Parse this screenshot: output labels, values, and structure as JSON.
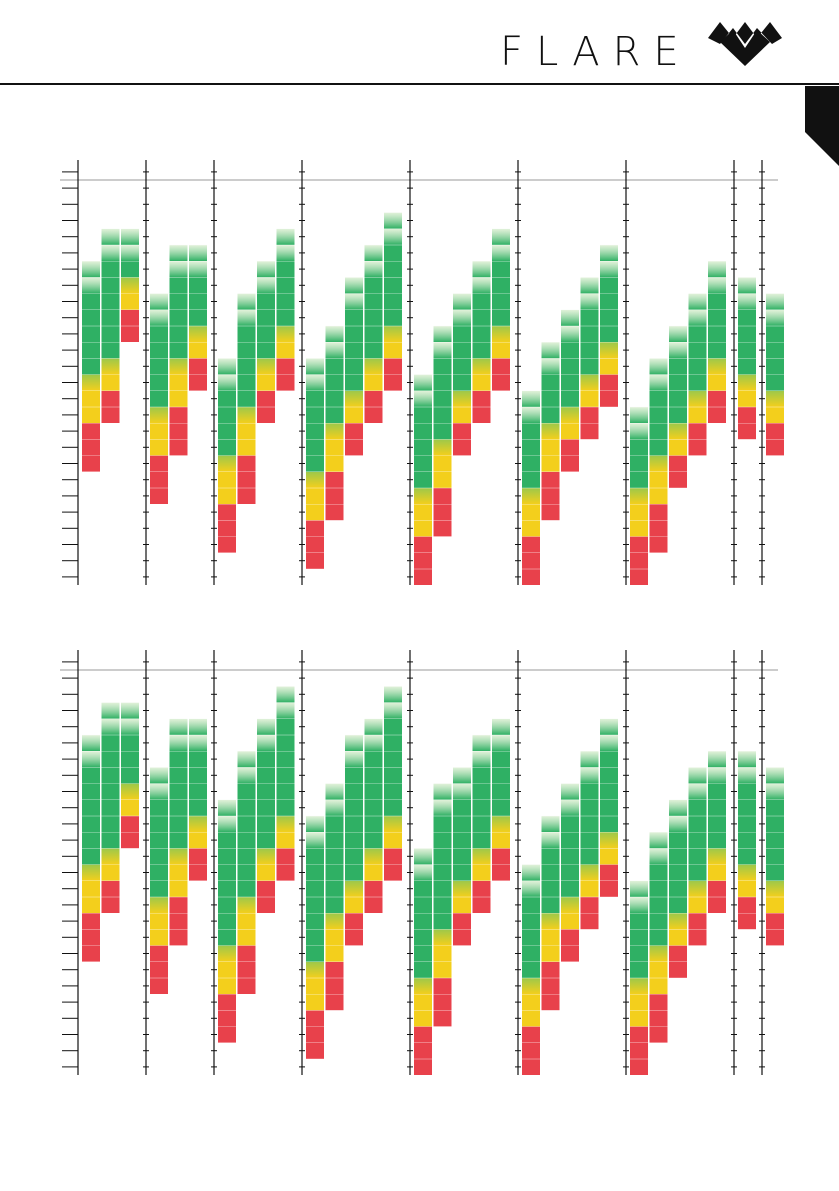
{
  "header": {
    "brand": "FLARE",
    "logo_icon": "double-chevron-logo",
    "tab_icon": "page-corner-tab"
  },
  "colors": {
    "red": "#e8414b",
    "yellow": "#f3cf1c",
    "green": "#2fb064",
    "axis": "#111111",
    "reference_line": "#999999"
  },
  "chart_data": [
    {
      "type": "bar",
      "stacked_ranges": true,
      "y_ticks": 25,
      "groups": [
        {
          "columns": [
            {
              "bottom": 7,
              "top": 20,
              "red": 3,
              "yellow": 3,
              "fade": 2
            },
            {
              "bottom": 10,
              "top": 22,
              "red": 2,
              "yellow": 2,
              "fade": 2
            },
            {
              "bottom": 15,
              "top": 22,
              "red": 2,
              "yellow": 2,
              "fade": 2
            }
          ]
        },
        {
          "columns": [
            {
              "bottom": 5,
              "top": 18,
              "red": 3,
              "yellow": 3,
              "fade": 2
            },
            {
              "bottom": 8,
              "top": 21,
              "red": 3,
              "yellow": 3,
              "fade": 2
            },
            {
              "bottom": 12,
              "top": 21,
              "red": 2,
              "yellow": 2,
              "fade": 2
            }
          ]
        },
        {
          "columns": [
            {
              "bottom": 2,
              "top": 14,
              "red": 3,
              "yellow": 3,
              "fade": 2
            },
            {
              "bottom": 5,
              "top": 18,
              "red": 3,
              "yellow": 3,
              "fade": 2
            },
            {
              "bottom": 10,
              "top": 20,
              "red": 2,
              "yellow": 2,
              "fade": 2
            },
            {
              "bottom": 12,
              "top": 22,
              "red": 2,
              "yellow": 2,
              "fade": 2
            }
          ]
        },
        {
          "columns": [
            {
              "bottom": 1,
              "top": 14,
              "red": 3,
              "yellow": 3,
              "fade": 2
            },
            {
              "bottom": 4,
              "top": 16,
              "red": 3,
              "yellow": 3,
              "fade": 2
            },
            {
              "bottom": 8,
              "top": 19,
              "red": 2,
              "yellow": 2,
              "fade": 2
            },
            {
              "bottom": 10,
              "top": 21,
              "red": 2,
              "yellow": 2,
              "fade": 2
            },
            {
              "bottom": 12,
              "top": 23,
              "red": 2,
              "yellow": 2,
              "fade": 2
            }
          ]
        },
        {
          "columns": [
            {
              "bottom": 0,
              "top": 13,
              "red": 3,
              "yellow": 3,
              "fade": 2
            },
            {
              "bottom": 3,
              "top": 16,
              "red": 3,
              "yellow": 3,
              "fade": 2
            },
            {
              "bottom": 8,
              "top": 18,
              "red": 2,
              "yellow": 2,
              "fade": 2
            },
            {
              "bottom": 10,
              "top": 20,
              "red": 2,
              "yellow": 2,
              "fade": 2
            },
            {
              "bottom": 12,
              "top": 22,
              "red": 2,
              "yellow": 2,
              "fade": 2
            }
          ]
        },
        {
          "columns": [
            {
              "bottom": 0,
              "top": 12,
              "red": 3,
              "yellow": 3,
              "fade": 2
            },
            {
              "bottom": 4,
              "top": 15,
              "red": 3,
              "yellow": 3,
              "fade": 2
            },
            {
              "bottom": 7,
              "top": 17,
              "red": 2,
              "yellow": 2,
              "fade": 2
            },
            {
              "bottom": 9,
              "top": 19,
              "red": 2,
              "yellow": 2,
              "fade": 2
            },
            {
              "bottom": 11,
              "top": 21,
              "red": 2,
              "yellow": 2,
              "fade": 2
            }
          ]
        },
        {
          "columns": [
            {
              "bottom": 0,
              "top": 11,
              "red": 3,
              "yellow": 3,
              "fade": 2
            },
            {
              "bottom": 2,
              "top": 14,
              "red": 3,
              "yellow": 3,
              "fade": 2
            },
            {
              "bottom": 6,
              "top": 16,
              "red": 2,
              "yellow": 2,
              "fade": 2
            },
            {
              "bottom": 8,
              "top": 18,
              "red": 2,
              "yellow": 2,
              "fade": 2
            },
            {
              "bottom": 10,
              "top": 20,
              "red": 2,
              "yellow": 2,
              "fade": 2
            }
          ]
        },
        {
          "columns": [
            {
              "bottom": 9,
              "top": 19,
              "red": 2,
              "yellow": 2,
              "fade": 2
            }
          ]
        },
        {
          "columns": [
            {
              "bottom": 8,
              "top": 18,
              "red": 2,
              "yellow": 2,
              "fade": 2
            }
          ]
        }
      ]
    },
    {
      "type": "bar",
      "stacked_ranges": true,
      "y_ticks": 25,
      "groups": [
        {
          "columns": [
            {
              "bottom": 7,
              "top": 21,
              "red": 3,
              "yellow": 3,
              "fade": 2
            },
            {
              "bottom": 10,
              "top": 23,
              "red": 2,
              "yellow": 2,
              "fade": 2
            },
            {
              "bottom": 14,
              "top": 23,
              "red": 2,
              "yellow": 2,
              "fade": 2
            }
          ]
        },
        {
          "columns": [
            {
              "bottom": 5,
              "top": 19,
              "red": 3,
              "yellow": 3,
              "fade": 2
            },
            {
              "bottom": 8,
              "top": 22,
              "red": 3,
              "yellow": 3,
              "fade": 2
            },
            {
              "bottom": 12,
              "top": 22,
              "red": 2,
              "yellow": 2,
              "fade": 2
            }
          ]
        },
        {
          "columns": [
            {
              "bottom": 2,
              "top": 17,
              "red": 3,
              "yellow": 3,
              "fade": 2
            },
            {
              "bottom": 5,
              "top": 20,
              "red": 3,
              "yellow": 3,
              "fade": 2
            },
            {
              "bottom": 10,
              "top": 22,
              "red": 2,
              "yellow": 2,
              "fade": 2
            },
            {
              "bottom": 12,
              "top": 24,
              "red": 2,
              "yellow": 2,
              "fade": 2
            }
          ]
        },
        {
          "columns": [
            {
              "bottom": 1,
              "top": 16,
              "red": 3,
              "yellow": 3,
              "fade": 2
            },
            {
              "bottom": 4,
              "top": 18,
              "red": 3,
              "yellow": 3,
              "fade": 2
            },
            {
              "bottom": 8,
              "top": 21,
              "red": 2,
              "yellow": 2,
              "fade": 2
            },
            {
              "bottom": 10,
              "top": 22,
              "red": 2,
              "yellow": 2,
              "fade": 2
            },
            {
              "bottom": 12,
              "top": 24,
              "red": 2,
              "yellow": 2,
              "fade": 2
            }
          ]
        },
        {
          "columns": [
            {
              "bottom": 0,
              "top": 14,
              "red": 3,
              "yellow": 3,
              "fade": 2
            },
            {
              "bottom": 3,
              "top": 18,
              "red": 3,
              "yellow": 3,
              "fade": 2
            },
            {
              "bottom": 8,
              "top": 19,
              "red": 2,
              "yellow": 2,
              "fade": 2
            },
            {
              "bottom": 10,
              "top": 21,
              "red": 2,
              "yellow": 2,
              "fade": 2
            },
            {
              "bottom": 12,
              "top": 22,
              "red": 2,
              "yellow": 2,
              "fade": 2
            }
          ]
        },
        {
          "columns": [
            {
              "bottom": 0,
              "top": 13,
              "red": 3,
              "yellow": 3,
              "fade": 2
            },
            {
              "bottom": 4,
              "top": 16,
              "red": 3,
              "yellow": 3,
              "fade": 2
            },
            {
              "bottom": 7,
              "top": 18,
              "red": 2,
              "yellow": 2,
              "fade": 2
            },
            {
              "bottom": 9,
              "top": 20,
              "red": 2,
              "yellow": 2,
              "fade": 2
            },
            {
              "bottom": 11,
              "top": 22,
              "red": 2,
              "yellow": 2,
              "fade": 2
            }
          ]
        },
        {
          "columns": [
            {
              "bottom": 0,
              "top": 12,
              "red": 3,
              "yellow": 3,
              "fade": 2
            },
            {
              "bottom": 2,
              "top": 15,
              "red": 3,
              "yellow": 3,
              "fade": 2
            },
            {
              "bottom": 6,
              "top": 17,
              "red": 2,
              "yellow": 2,
              "fade": 2
            },
            {
              "bottom": 8,
              "top": 19,
              "red": 2,
              "yellow": 2,
              "fade": 2
            },
            {
              "bottom": 10,
              "top": 20,
              "red": 2,
              "yellow": 2,
              "fade": 2
            }
          ]
        },
        {
          "columns": [
            {
              "bottom": 9,
              "top": 20,
              "red": 2,
              "yellow": 2,
              "fade": 2
            }
          ]
        },
        {
          "columns": [
            {
              "bottom": 8,
              "top": 19,
              "red": 2,
              "yellow": 2,
              "fade": 2
            }
          ]
        }
      ]
    }
  ]
}
